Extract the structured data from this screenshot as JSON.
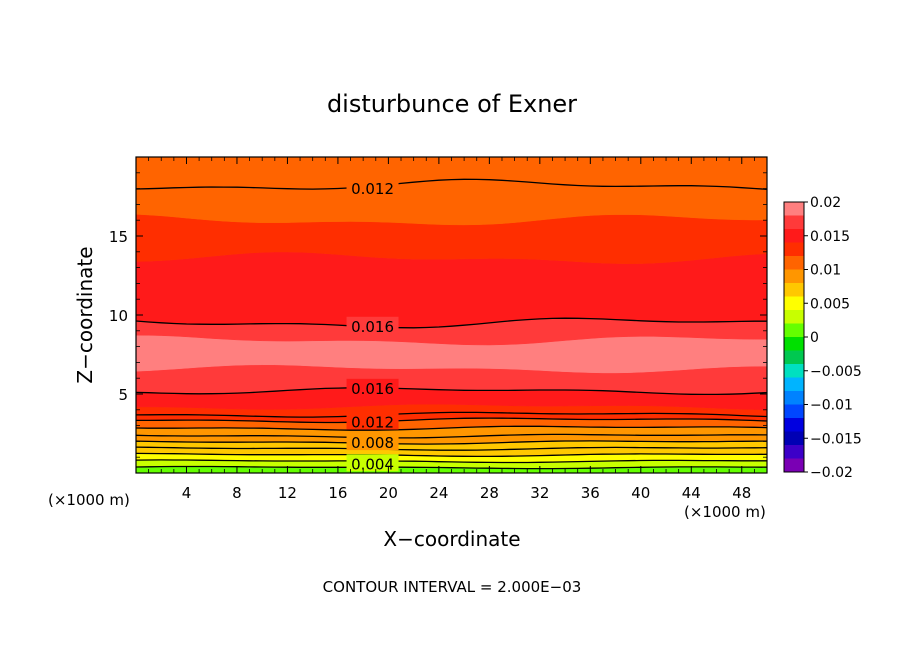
{
  "chart_data": {
    "type": "heatmap",
    "subtype": "filled-contour",
    "title": "disturbunce of Exner",
    "xlabel": "X−coordinate",
    "ylabel": "Z−coordinate",
    "x_unit_left": "(×1000 m)",
    "x_unit_right": "(×1000 m)",
    "footer": "CONTOUR INTERVAL = 2.000E−03",
    "xlim": [
      0,
      50
    ],
    "ylim": [
      0,
      20
    ],
    "x_ticks": [
      4,
      8,
      12,
      16,
      20,
      24,
      28,
      32,
      36,
      40,
      44,
      48
    ],
    "x_tick_labels": [
      "4",
      "8",
      "12",
      "16",
      "20",
      "24",
      "28",
      "32",
      "36",
      "40",
      "44",
      "48"
    ],
    "y_ticks": [
      5,
      10,
      15
    ],
    "y_tick_labels": [
      "5",
      "10",
      "15"
    ],
    "grid": false,
    "contour_interval": 0.002,
    "contour_line_labels": [
      {
        "text": "0.012",
        "value": 0.012,
        "x": 17,
        "z": 18.2
      },
      {
        "text": "0.016",
        "value": 0.016,
        "x": 17,
        "z": 9.5
      },
      {
        "text": "0.016",
        "value": 0.016,
        "x": 17,
        "z": 5.2
      },
      {
        "text": "0.012",
        "value": 0.012,
        "x": 17,
        "z": 3.4
      },
      {
        "text": "0.008",
        "value": 0.008,
        "x": 17,
        "z": 2.0
      },
      {
        "text": "0.004",
        "value": 0.004,
        "x": 17,
        "z": 0.6
      }
    ],
    "bands": [
      {
        "z_bottom": 0.0,
        "z_top": 0.35,
        "value": 0.001
      },
      {
        "z_bottom": 0.35,
        "z_top": 0.75,
        "value": 0.003
      },
      {
        "z_bottom": 0.75,
        "z_top": 1.15,
        "value": 0.005
      },
      {
        "z_bottom": 1.15,
        "z_top": 1.55,
        "value": 0.007
      },
      {
        "z_bottom": 1.55,
        "z_top": 1.95,
        "value": 0.007
      },
      {
        "z_bottom": 1.95,
        "z_top": 2.35,
        "value": 0.009
      },
      {
        "z_bottom": 2.35,
        "z_top": 2.85,
        "value": 0.009
      },
      {
        "z_bottom": 2.85,
        "z_top": 3.35,
        "value": 0.011
      },
      {
        "z_bottom": 3.35,
        "z_top": 3.7,
        "value": 0.013
      },
      {
        "z_bottom": 3.7,
        "z_top": 4.2,
        "value": 0.014
      },
      {
        "z_bottom": 4.2,
        "z_top": 5.2,
        "value": 0.015
      },
      {
        "z_bottom": 5.2,
        "z_top": 6.6,
        "value": 0.017
      },
      {
        "z_bottom": 6.6,
        "z_top": 8.4,
        "value": 0.019
      },
      {
        "z_bottom": 8.4,
        "z_top": 9.5,
        "value": 0.017
      },
      {
        "z_bottom": 9.5,
        "z_top": 13.6,
        "value": 0.015
      },
      {
        "z_bottom": 13.6,
        "z_top": 16.0,
        "value": 0.013
      },
      {
        "z_bottom": 16.0,
        "z_top": 18.2,
        "value": 0.011
      },
      {
        "z_bottom": 18.2,
        "z_top": 20.0,
        "value": 0.011
      }
    ],
    "contour_lines_z": [
      0.35,
      0.75,
      1.15,
      1.55,
      1.95,
      2.35,
      2.85,
      3.35,
      3.7,
      5.2,
      9.5,
      18.2
    ],
    "colorbar": {
      "range": [
        -0.02,
        0.02
      ],
      "labels": [
        "0.02",
        "0.015",
        "0.01",
        "0.005",
        "0",
        "−0.005",
        "−0.01",
        "−0.015",
        "−0.02"
      ],
      "label_values": [
        0.02,
        0.015,
        0.01,
        0.005,
        0,
        -0.005,
        -0.01,
        -0.015,
        -0.02
      ],
      "colors_top_to_bottom": [
        "#ff7f7f",
        "#ff3a3a",
        "#ff1a1a",
        "#ff2e00",
        "#ff6400",
        "#ff9600",
        "#ffc800",
        "#ffff00",
        "#c8ff00",
        "#64ff00",
        "#00e000",
        "#00c850",
        "#00e0c0",
        "#00b4ff",
        "#0082ff",
        "#0046ff",
        "#0000e0",
        "#0000b4",
        "#3c00c8",
        "#7a00b4"
      ]
    }
  }
}
